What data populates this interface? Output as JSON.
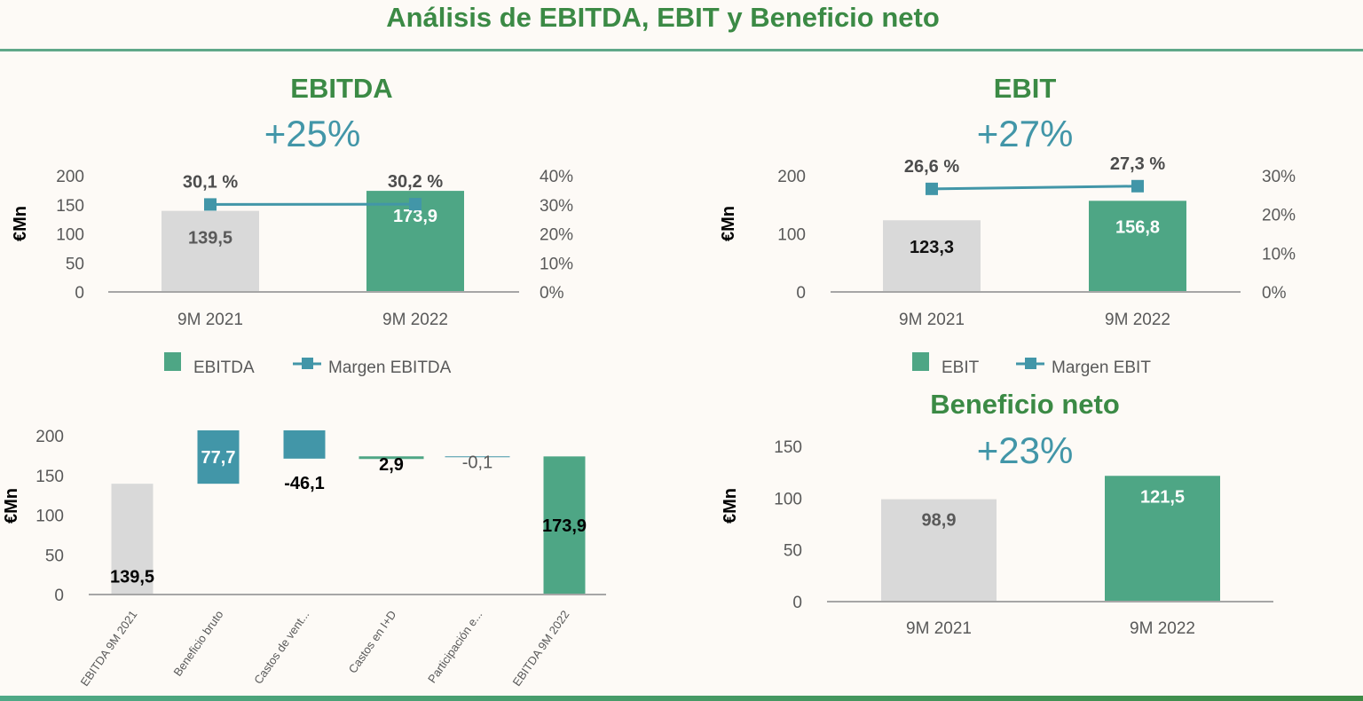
{
  "page": {
    "title": "Análisis de EBITDA, EBIT y Beneficio neto",
    "colors": {
      "green_title": "#3b8a45",
      "teal": "#4296a8",
      "bar_prev": "#d9d9d9",
      "bar_curr": "#4ea685",
      "axis": "#a6a6a6"
    }
  },
  "chart_data": [
    {
      "id": "ebitda",
      "type": "bar",
      "title": "EBITDA",
      "growth": "+25%",
      "ylabel": "€Mn",
      "ylim": [
        0,
        200
      ],
      "yticks": [
        "0",
        "50",
        "100",
        "150",
        "200"
      ],
      "y2lim": [
        0,
        40
      ],
      "y2ticks": [
        "0%",
        "10%",
        "20%",
        "30%",
        "40%"
      ],
      "categories": [
        "9M 2021",
        "9M 2022"
      ],
      "series": [
        {
          "name": "EBITDA",
          "type": "bar",
          "values": [
            139.5,
            173.9
          ],
          "labels": [
            "139,5",
            "173,9"
          ]
        },
        {
          "name": "Margen EBITDA",
          "type": "line",
          "axis": "secondary",
          "values": [
            30.1,
            30.2
          ],
          "labels": [
            "30,1 %",
            "30,2 %"
          ]
        }
      ],
      "legend": [
        "EBITDA",
        "Margen EBITDA"
      ],
      "legend_position": "bottom"
    },
    {
      "id": "ebit",
      "type": "bar",
      "title": "EBIT",
      "growth": "+27%",
      "ylabel": "€Mn",
      "ylim": [
        0,
        200
      ],
      "yticks": [
        "0",
        "100",
        "200"
      ],
      "y2lim": [
        0,
        30
      ],
      "y2ticks": [
        "0%",
        "10%",
        "20%",
        "30%"
      ],
      "categories": [
        "9M 2021",
        "9M 2022"
      ],
      "series": [
        {
          "name": "EBIT",
          "type": "bar",
          "values": [
            123.3,
            156.8
          ],
          "labels": [
            "123,3",
            "156,8"
          ]
        },
        {
          "name": "Margen EBIT",
          "type": "line",
          "axis": "secondary",
          "values": [
            26.6,
            27.3
          ],
          "labels": [
            "26,6 %",
            "27,3 %"
          ]
        }
      ],
      "legend": [
        "EBIT",
        "Margen EBIT"
      ],
      "legend_position": "bottom"
    },
    {
      "id": "waterfall",
      "type": "bar",
      "subtype": "waterfall",
      "title": "",
      "ylabel": "€Mn",
      "ylim": [
        0,
        200
      ],
      "yticks": [
        "0",
        "50",
        "100",
        "150",
        "200"
      ],
      "categories": [
        "EBITDA 9M 2021",
        "Beneficio bruto",
        "Castos de vent...",
        "Castos en I+D",
        "Participación e...",
        "EBITDA 9M 2022"
      ],
      "values": [
        139.5,
        77.7,
        -46.1,
        2.9,
        -0.1,
        173.9
      ],
      "labels": [
        "139,5",
        "77,7",
        "-46,1",
        "2,9",
        "-0,1",
        "173,9"
      ],
      "kinds": [
        "total",
        "delta",
        "delta",
        "delta",
        "delta",
        "total"
      ]
    },
    {
      "id": "beneficio-neto",
      "type": "bar",
      "title": "Beneficio neto",
      "growth": "+23%",
      "ylabel": "€Mn",
      "ylim": [
        0,
        150
      ],
      "yticks": [
        "0",
        "50",
        "100",
        "150"
      ],
      "categories": [
        "9M 2021",
        "9M 2022"
      ],
      "series": [
        {
          "name": "Beneficio neto",
          "type": "bar",
          "values": [
            98.9,
            121.5
          ],
          "labels": [
            "98,9",
            "121,5"
          ]
        }
      ]
    }
  ]
}
